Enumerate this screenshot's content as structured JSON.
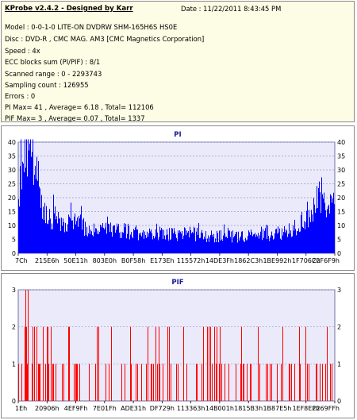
{
  "app": {
    "title": "KProbe v2.4.2 - Designed by Karr",
    "date": "Date : 11/22/2011 8:43:45 PM"
  },
  "info_lines": [
    "Model : 0-0-1-0 LITE-ON DVDRW SHM-165H6S HS0E",
    "Disc : DVD-R , CMC MAG. AM3 [CMC Magnetics Corporation]",
    "Speed : 4x",
    "ECC blocks sum (PI/PIF) : 8/1",
    "Scanned range : 0 - 2293743",
    "Sampling count : 126955",
    "Errors : 0",
    "PI Max= 41 , Average= 6.18 , Total= 112106",
    "PIF Max= 3 , Average= 0.07 , Total= 1337"
  ],
  "colors": {
    "panel_bg": "#fdfce4",
    "plot_bg": "#eaeafa",
    "grid": "#9a9ad0",
    "pi_bars": "#0000ff",
    "pif_bars": "#ff0000",
    "pif_limit": "#008000",
    "title_text": "#1a1a9a"
  },
  "chart_data": [
    {
      "type": "bar",
      "title": "PI",
      "ylim": [
        0,
        40
      ],
      "y_ticks": [
        5,
        10,
        15,
        20,
        25,
        30,
        35,
        40
      ],
      "x_tick_labels": [
        "7Ch",
        "215E6h",
        "50E11h",
        "803E0h",
        "B0F58h",
        "E173Eh",
        "115572h",
        "14DE3Fh",
        "1862C3h",
        "1BE992h",
        "1F706Ch",
        "22F6F9h"
      ],
      "grid": true,
      "x_range": [
        124,
        2291449
      ],
      "max": 41,
      "average": 6.18,
      "total": 112106,
      "series_profile": [
        [
          0.0,
          28
        ],
        [
          0.01,
          33
        ],
        [
          0.02,
          36
        ],
        [
          0.03,
          38
        ],
        [
          0.04,
          38
        ],
        [
          0.05,
          36
        ],
        [
          0.06,
          30
        ],
        [
          0.07,
          24
        ],
        [
          0.08,
          19
        ],
        [
          0.09,
          16
        ],
        [
          0.1,
          15
        ],
        [
          0.12,
          14
        ],
        [
          0.15,
          13
        ],
        [
          0.18,
          12
        ],
        [
          0.22,
          11
        ],
        [
          0.26,
          10
        ],
        [
          0.3,
          9
        ],
        [
          0.35,
          9
        ],
        [
          0.4,
          8
        ],
        [
          0.45,
          8
        ],
        [
          0.5,
          8
        ],
        [
          0.55,
          8
        ],
        [
          0.6,
          7
        ],
        [
          0.65,
          7
        ],
        [
          0.7,
          7
        ],
        [
          0.75,
          8
        ],
        [
          0.8,
          8
        ],
        [
          0.84,
          9
        ],
        [
          0.87,
          11
        ],
        [
          0.9,
          14
        ],
        [
          0.92,
          17
        ],
        [
          0.94,
          20
        ],
        [
          0.955,
          23
        ],
        [
          0.97,
          22
        ],
        [
          0.985,
          20
        ],
        [
          1.0,
          18
        ]
      ]
    },
    {
      "type": "bar",
      "title": "PIF",
      "ylim": [
        0,
        3
      ],
      "y_ticks": [
        1,
        2,
        3
      ],
      "x_tick_labels": [
        "1Eh",
        "20906h",
        "4EF9Fh",
        "7E01Fh",
        "ADE31h",
        "DF729h",
        "113363h",
        "14B001h",
        "1815B3h",
        "1B87E5h",
        "1EF8EFh",
        "2269FFh"
      ],
      "grid": true,
      "x_range": [
        30,
        2255359
      ],
      "max": 3,
      "average": 0.07,
      "total": 1337,
      "limit_line": 4
    }
  ]
}
